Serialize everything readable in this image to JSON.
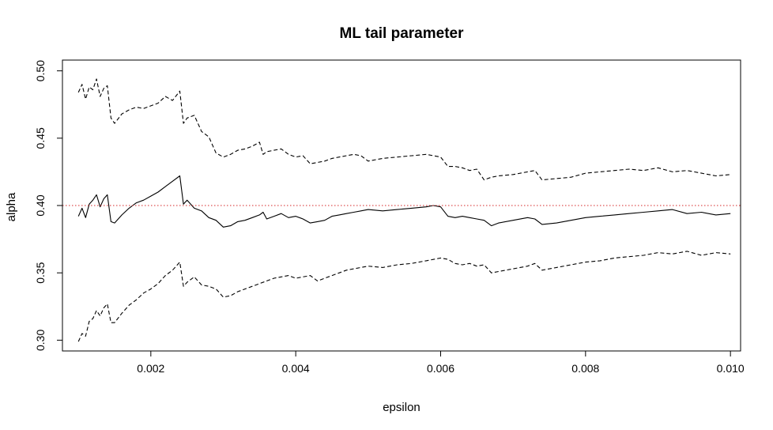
{
  "chart_data": {
    "type": "line",
    "title": "ML tail parameter",
    "xlabel": "epsilon",
    "ylabel": "alpha",
    "xlim": [
      0.00078,
      0.01014
    ],
    "ylim": [
      0.292,
      0.508
    ],
    "xticks": [
      0.002,
      0.004,
      0.006,
      0.008,
      0.01
    ],
    "xtick_labels": [
      "0.002",
      "0.004",
      "0.006",
      "0.008",
      "0.010"
    ],
    "yticks": [
      0.3,
      0.35,
      0.4,
      0.45,
      0.5
    ],
    "ytick_labels": [
      "0.30",
      "0.35",
      "0.40",
      "0.45",
      "0.50"
    ],
    "grid": false,
    "reference_line": {
      "y": 0.4,
      "color": "#d62728",
      "style": "dotted"
    },
    "series": [
      {
        "style": "dashed",
        "color": "#000000",
        "x": [
          0.001,
          0.00105,
          0.0011,
          0.00115,
          0.0012,
          0.00125,
          0.0013,
          0.00135,
          0.0014,
          0.00145,
          0.0015,
          0.0016,
          0.0017,
          0.0018,
          0.0019,
          0.002,
          0.0021,
          0.0022,
          0.0023,
          0.0024,
          0.00245,
          0.0025,
          0.0026,
          0.0027,
          0.0028,
          0.0029,
          0.003,
          0.0031,
          0.0032,
          0.0033,
          0.0034,
          0.0035,
          0.00355,
          0.0036,
          0.0037,
          0.0038,
          0.0039,
          0.004,
          0.0041,
          0.0042,
          0.0043,
          0.0044,
          0.0045,
          0.0046,
          0.0047,
          0.0048,
          0.0049,
          0.005,
          0.0052,
          0.0054,
          0.0056,
          0.0058,
          0.006,
          0.0061,
          0.0062,
          0.0063,
          0.0064,
          0.0065,
          0.0066,
          0.0067,
          0.0068,
          0.007,
          0.0072,
          0.0073,
          0.0074,
          0.0076,
          0.0078,
          0.008,
          0.0082,
          0.0084,
          0.0086,
          0.0088,
          0.009,
          0.0092,
          0.0094,
          0.0096,
          0.0098,
          0.01
        ],
        "y": [
          0.484,
          0.49,
          0.479,
          0.488,
          0.486,
          0.494,
          0.481,
          0.487,
          0.489,
          0.465,
          0.461,
          0.468,
          0.471,
          0.473,
          0.472,
          0.474,
          0.476,
          0.481,
          0.478,
          0.485,
          0.461,
          0.465,
          0.467,
          0.455,
          0.451,
          0.439,
          0.436,
          0.438,
          0.441,
          0.442,
          0.444,
          0.447,
          0.438,
          0.44,
          0.441,
          0.442,
          0.438,
          0.436,
          0.437,
          0.431,
          0.432,
          0.433,
          0.435,
          0.436,
          0.437,
          0.438,
          0.437,
          0.433,
          0.435,
          0.436,
          0.437,
          0.438,
          0.436,
          0.429,
          0.429,
          0.428,
          0.426,
          0.427,
          0.419,
          0.421,
          0.422,
          0.423,
          0.425,
          0.426,
          0.419,
          0.42,
          0.421,
          0.424,
          0.425,
          0.426,
          0.427,
          0.426,
          0.428,
          0.425,
          0.426,
          0.424,
          0.422,
          0.423
        ]
      },
      {
        "style": "solid",
        "color": "#000000",
        "x": [
          0.001,
          0.00105,
          0.0011,
          0.00115,
          0.0012,
          0.00125,
          0.0013,
          0.00135,
          0.0014,
          0.00145,
          0.0015,
          0.0016,
          0.0017,
          0.0018,
          0.0019,
          0.002,
          0.0021,
          0.0022,
          0.0023,
          0.0024,
          0.00245,
          0.0025,
          0.0026,
          0.0027,
          0.0028,
          0.0029,
          0.003,
          0.0031,
          0.0032,
          0.0033,
          0.0034,
          0.0035,
          0.00355,
          0.0036,
          0.0037,
          0.0038,
          0.0039,
          0.004,
          0.0041,
          0.0042,
          0.0043,
          0.0044,
          0.0045,
          0.0046,
          0.0047,
          0.0048,
          0.0049,
          0.005,
          0.0052,
          0.0054,
          0.0056,
          0.0058,
          0.0059,
          0.006,
          0.0061,
          0.0062,
          0.0063,
          0.0064,
          0.0065,
          0.0066,
          0.0067,
          0.0068,
          0.007,
          0.0072,
          0.0073,
          0.0074,
          0.0076,
          0.0078,
          0.008,
          0.0082,
          0.0084,
          0.0086,
          0.0088,
          0.009,
          0.0092,
          0.0094,
          0.0096,
          0.0098,
          0.01
        ],
        "y": [
          0.392,
          0.398,
          0.391,
          0.401,
          0.404,
          0.408,
          0.399,
          0.405,
          0.408,
          0.388,
          0.387,
          0.393,
          0.398,
          0.402,
          0.404,
          0.407,
          0.41,
          0.414,
          0.418,
          0.422,
          0.401,
          0.404,
          0.398,
          0.396,
          0.391,
          0.389,
          0.384,
          0.385,
          0.388,
          0.389,
          0.391,
          0.393,
          0.395,
          0.39,
          0.392,
          0.394,
          0.391,
          0.392,
          0.39,
          0.387,
          0.388,
          0.389,
          0.392,
          0.393,
          0.394,
          0.395,
          0.396,
          0.397,
          0.396,
          0.397,
          0.398,
          0.399,
          0.4,
          0.399,
          0.392,
          0.391,
          0.392,
          0.391,
          0.39,
          0.389,
          0.385,
          0.387,
          0.389,
          0.391,
          0.39,
          0.386,
          0.387,
          0.389,
          0.391,
          0.392,
          0.393,
          0.394,
          0.395,
          0.396,
          0.397,
          0.394,
          0.395,
          0.393,
          0.394
        ]
      },
      {
        "style": "dashed",
        "color": "#000000",
        "x": [
          0.001,
          0.00105,
          0.0011,
          0.00115,
          0.0012,
          0.00125,
          0.0013,
          0.00135,
          0.0014,
          0.00145,
          0.0015,
          0.0016,
          0.0017,
          0.0018,
          0.0019,
          0.002,
          0.0021,
          0.0022,
          0.0023,
          0.0024,
          0.00245,
          0.0025,
          0.0026,
          0.0027,
          0.0028,
          0.0029,
          0.003,
          0.0031,
          0.0032,
          0.0033,
          0.0034,
          0.0035,
          0.0036,
          0.0037,
          0.0038,
          0.0039,
          0.004,
          0.0041,
          0.0042,
          0.0043,
          0.0044,
          0.0045,
          0.0046,
          0.0047,
          0.0048,
          0.0049,
          0.005,
          0.0052,
          0.0054,
          0.0056,
          0.0058,
          0.006,
          0.0061,
          0.0062,
          0.0063,
          0.0064,
          0.0065,
          0.0066,
          0.0067,
          0.0068,
          0.007,
          0.0072,
          0.0073,
          0.0074,
          0.0076,
          0.0078,
          0.008,
          0.0082,
          0.0084,
          0.0086,
          0.0088,
          0.009,
          0.0092,
          0.0094,
          0.0096,
          0.0098,
          0.01
        ],
        "y": [
          0.299,
          0.305,
          0.303,
          0.314,
          0.316,
          0.322,
          0.318,
          0.324,
          0.327,
          0.313,
          0.313,
          0.32,
          0.326,
          0.33,
          0.335,
          0.338,
          0.342,
          0.348,
          0.352,
          0.358,
          0.34,
          0.343,
          0.347,
          0.341,
          0.34,
          0.338,
          0.332,
          0.333,
          0.336,
          0.338,
          0.34,
          0.342,
          0.344,
          0.346,
          0.347,
          0.348,
          0.346,
          0.347,
          0.348,
          0.344,
          0.346,
          0.348,
          0.35,
          0.352,
          0.353,
          0.354,
          0.355,
          0.354,
          0.356,
          0.357,
          0.359,
          0.361,
          0.36,
          0.357,
          0.356,
          0.357,
          0.355,
          0.356,
          0.35,
          0.351,
          0.353,
          0.355,
          0.357,
          0.352,
          0.354,
          0.356,
          0.358,
          0.359,
          0.361,
          0.362,
          0.363,
          0.365,
          0.364,
          0.366,
          0.363,
          0.365,
          0.364
        ]
      }
    ]
  }
}
